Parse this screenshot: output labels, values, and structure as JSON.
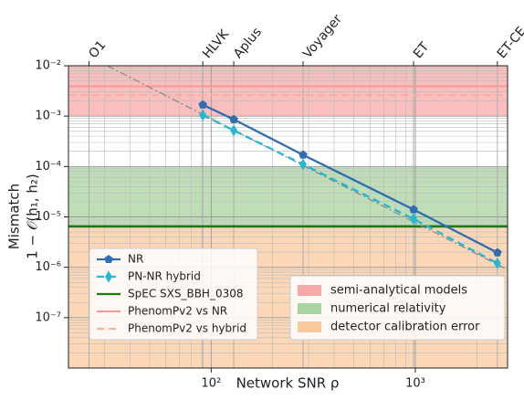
{
  "chart_data": {
    "type": "line",
    "xscale": "log",
    "yscale": "log",
    "xlabel": "Network SNR ρ",
    "ylabel": [
      "Mismatch",
      "1 − 𝒪(h₁, h₂)"
    ],
    "xlim": [
      20,
      2830
    ],
    "ylim": [
      1e-08,
      0.01
    ],
    "xticks": [
      {
        "value": 100,
        "label": "10²"
      },
      {
        "value": 1000,
        "label": "10³"
      }
    ],
    "yticks": [
      {
        "value": 1e-07,
        "label": "10⁻⁷"
      },
      {
        "value": 1e-06,
        "label": "10⁻⁶"
      },
      {
        "value": 1e-05,
        "label": "10⁻⁵"
      },
      {
        "value": 0.0001,
        "label": "10⁻⁴"
      },
      {
        "value": 0.001,
        "label": "10⁻³"
      },
      {
        "value": 0.01,
        "label": "10⁻²"
      }
    ],
    "xminor_ticks": [
      20,
      30,
      40,
      50,
      60,
      70,
      80,
      90,
      200,
      300,
      400,
      500,
      600,
      700,
      800,
      900,
      2000
    ],
    "yminor_ticks": [
      2e-08,
      3e-08,
      4e-08,
      5e-08,
      6e-08,
      7e-08,
      8e-08,
      9e-08,
      2e-07,
      3e-07,
      4e-07,
      5e-07,
      6e-07,
      7e-07,
      8e-07,
      9e-07,
      2e-06,
      3e-06,
      4e-06,
      5e-06,
      6e-06,
      7e-06,
      8e-06,
      9e-06,
      2e-05,
      3e-05,
      4e-05,
      5e-05,
      6e-05,
      7e-05,
      8e-05,
      9e-05,
      0.0002,
      0.0003,
      0.0004,
      0.0005,
      0.0006,
      0.0007,
      0.0008,
      0.0009,
      0.002,
      0.003,
      0.004,
      0.005,
      0.006,
      0.007,
      0.008,
      0.009
    ],
    "grid": true,
    "top_ticks": [
      {
        "value": 25.2,
        "label": "O1"
      },
      {
        "value": 91,
        "label": "HLVK"
      },
      {
        "value": 129,
        "label": "Aplus"
      },
      {
        "value": 282,
        "label": "Voyager"
      },
      {
        "value": 980,
        "label": "ET"
      },
      {
        "value": 2523,
        "label": "ET-CE"
      }
    ],
    "bands": [
      {
        "name": "semi-analytical models",
        "color": "#f7a8a8",
        "range": [
          0.001,
          0.01
        ]
      },
      {
        "name": "numerical relativity",
        "color": "#a9d3a0",
        "range": [
          6.5e-06,
          0.0001
        ]
      },
      {
        "name": "detector calibration error",
        "color": "#f9c9a0",
        "range": [
          1e-08,
          6.5e-06
        ]
      }
    ],
    "series": [
      {
        "name": "NR",
        "color": "#2f6eb0",
        "marker": "pentagon",
        "style": "solid",
        "x": [
          91,
          129,
          282,
          980,
          2523
        ],
        "values": [
          0.00168,
          0.00086,
          0.00017,
          1.4e-05,
          1.95e-06
        ]
      },
      {
        "name": "PN-NR hybrid",
        "color": "#25b9cf",
        "marker": "diamond",
        "style": "dashed",
        "x": [
          91,
          129,
          282,
          980,
          2523
        ],
        "values": [
          0.00105,
          0.00052,
          0.00011,
          9.1e-06,
          1.2e-06
        ]
      }
    ],
    "hlines": [
      {
        "name": "SpEC SXS_BBH_0308",
        "color": "#1b7a12",
        "style": "solid",
        "value": 6.5e-06
      },
      {
        "name": "PhenomPv2 vs NR",
        "color": "#f59a9a",
        "style": "solid",
        "value": 0.0039
      },
      {
        "name": "PhenomPv2 vs hybrid",
        "color": "#f5b0a0",
        "style": "dashed",
        "value": 0.0026
      }
    ],
    "reference_line": {
      "color": "#888888",
      "style": "dashdot",
      "x": [
        31,
        2826
      ],
      "values": [
        0.01,
        9e-07
      ]
    }
  }
}
